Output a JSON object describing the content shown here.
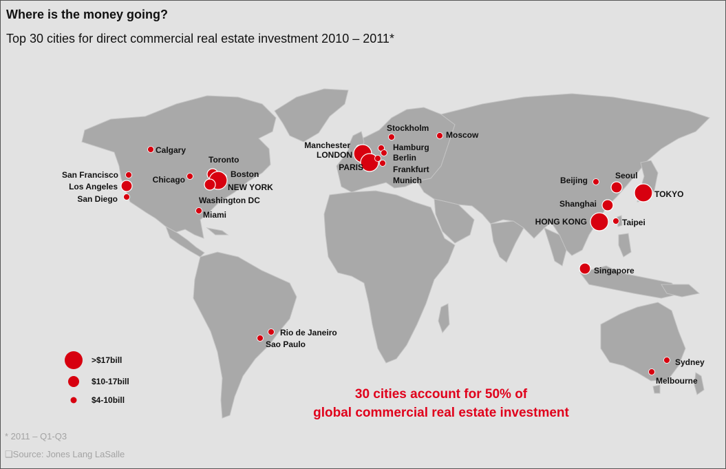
{
  "title": "Where is the money going?",
  "subtitle": "Top 30 cities for direct commercial real estate investment 2010 – 2011*",
  "colors": {
    "dot": "#d7000f",
    "land": "#a9a9a9",
    "background": "#e2e2e2",
    "callout": "#e0001b"
  },
  "legend": [
    {
      "label": ">$17bill",
      "tier": "large"
    },
    {
      "label": "$10-17bill",
      "tier": "medium"
    },
    {
      "label": "$4-10bill",
      "tier": "small"
    }
  ],
  "cities": [
    {
      "name": "Calgary",
      "tier": "small"
    },
    {
      "name": "San Francisco",
      "tier": "small"
    },
    {
      "name": "Los Angeles",
      "tier": "medium"
    },
    {
      "name": "San Diego",
      "tier": "small"
    },
    {
      "name": "Chicago",
      "tier": "small"
    },
    {
      "name": "Toronto",
      "tier": "medium"
    },
    {
      "name": "Boston",
      "tier": "small"
    },
    {
      "name": "NEW YORK",
      "tier": "large"
    },
    {
      "name": "Washington DC",
      "tier": "medium"
    },
    {
      "name": "Miami",
      "tier": "small"
    },
    {
      "name": "Rio de Janeiro",
      "tier": "small"
    },
    {
      "name": "Sao Paulo",
      "tier": "small"
    },
    {
      "name": "Stockholm",
      "tier": "small"
    },
    {
      "name": "Moscow",
      "tier": "small"
    },
    {
      "name": "Manchester",
      "tier": "small"
    },
    {
      "name": "LONDON",
      "tier": "large"
    },
    {
      "name": "PARIS",
      "tier": "large"
    },
    {
      "name": "Hamburg",
      "tier": "small"
    },
    {
      "name": "Berlin",
      "tier": "small"
    },
    {
      "name": "Frankfurt",
      "tier": "small"
    },
    {
      "name": "Munich",
      "tier": "small"
    },
    {
      "name": "Beijing",
      "tier": "small"
    },
    {
      "name": "Seoul",
      "tier": "medium"
    },
    {
      "name": "TOKYO",
      "tier": "large"
    },
    {
      "name": "Shanghai",
      "tier": "medium"
    },
    {
      "name": "HONG KONG",
      "tier": "large"
    },
    {
      "name": "Taipei",
      "tier": "small"
    },
    {
      "name": "Singapore",
      "tier": "medium"
    },
    {
      "name": "Sydney",
      "tier": "small"
    },
    {
      "name": "Melbourne",
      "tier": "small"
    }
  ],
  "callout": {
    "line1": "30 cities account for 50% of",
    "line2": "global commercial real estate investment"
  },
  "footnote": "* 2011 – Q1-Q3",
  "source": "❑Source: Jones Lang LaSalle"
}
